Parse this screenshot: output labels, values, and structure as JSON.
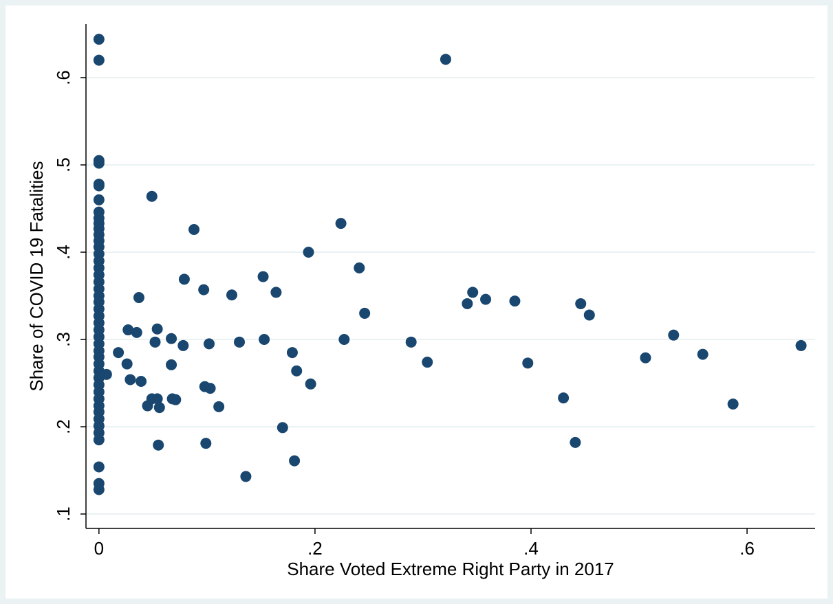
{
  "chart_data": {
    "type": "scatter",
    "x_label": "Share Voted Extreme Right Party in 2017",
    "y_label": "Share of COVID 19 Fatalities",
    "color": "#1a476f",
    "grid": true,
    "xlim": [
      -0.012,
      0.663
    ],
    "ylim": [
      0.0835,
      0.6614
    ],
    "xticks": [
      0,
      {
        "value": 0.2,
        "label": ".2"
      },
      {
        "value": 0.4,
        "label": ".4"
      },
      {
        "value": 0.6,
        "label": ".6"
      }
    ],
    "yticks": [
      {
        "value": 0.1,
        "label": ".1"
      },
      {
        "value": 0.2,
        "label": ".2"
      },
      {
        "value": 0.3,
        "label": ".3"
      },
      {
        "value": 0.4,
        "label": ".4"
      },
      {
        "value": 0.5,
        "label": ".5"
      },
      {
        "value": 0.6,
        "label": ".6"
      }
    ],
    "x": [
      0,
      0,
      0,
      0,
      0,
      0,
      0,
      0,
      0,
      0,
      0,
      0,
      0,
      0,
      0,
      0,
      0,
      0,
      0,
      0,
      0,
      0,
      0,
      0,
      0,
      0,
      0,
      0,
      0,
      0,
      0,
      0,
      0,
      0,
      0,
      0,
      0,
      0,
      0,
      0,
      0,
      0,
      0,
      0,
      0,
      0.007,
      0.018,
      0.026,
      0.027,
      0.029,
      0.035,
      0.037,
      0.039,
      0.045,
      0.049,
      0.049,
      0.052,
      0.054,
      0.054,
      0.055,
      0.056,
      0.067,
      0.067,
      0.068,
      0.071,
      0.078,
      0.079,
      0.088,
      0.097,
      0.098,
      0.099,
      0.102,
      0.103,
      0.111,
      0.123,
      0.13,
      0.136,
      0.152,
      0.153,
      0.164,
      0.17,
      0.179,
      0.181,
      0.183,
      0.194,
      0.196,
      0.224,
      0.227,
      0.241,
      0.246,
      0.289,
      0.304,
      0.321,
      0.341,
      0.346,
      0.358,
      0.385,
      0.397,
      0.43,
      0.441,
      0.446,
      0.454,
      0.506,
      0.532,
      0.559,
      0.587,
      0.65
    ],
    "values": [
      0.644,
      0.62,
      0.505,
      0.502,
      0.478,
      0.476,
      0.46,
      0.446,
      0.439,
      0.433,
      0.427,
      0.42,
      0.413,
      0.406,
      0.398,
      0.39,
      0.382,
      0.374,
      0.366,
      0.358,
      0.35,
      0.343,
      0.335,
      0.327,
      0.319,
      0.311,
      0.303,
      0.295,
      0.287,
      0.28,
      0.272,
      0.264,
      0.256,
      0.248,
      0.24,
      0.232,
      0.224,
      0.217,
      0.209,
      0.201,
      0.193,
      0.185,
      0.154,
      0.135,
      0.128,
      0.26,
      0.285,
      0.272,
      0.311,
      0.254,
      0.308,
      0.348,
      0.252,
      0.224,
      0.464,
      0.232,
      0.297,
      0.232,
      0.312,
      0.179,
      0.222,
      0.301,
      0.271,
      0.232,
      0.231,
      0.293,
      0.369,
      0.426,
      0.357,
      0.246,
      0.181,
      0.295,
      0.244,
      0.223,
      0.351,
      0.297,
      0.143,
      0.372,
      0.3,
      0.354,
      0.199,
      0.285,
      0.161,
      0.264,
      0.4,
      0.249,
      0.433,
      0.3,
      0.382,
      0.33,
      0.297,
      0.274,
      0.621,
      0.341,
      0.354,
      0.346,
      0.344,
      0.273,
      0.233,
      0.182,
      0.341,
      0.328,
      0.279,
      0.305,
      0.283,
      0.226,
      0.293
    ]
  }
}
